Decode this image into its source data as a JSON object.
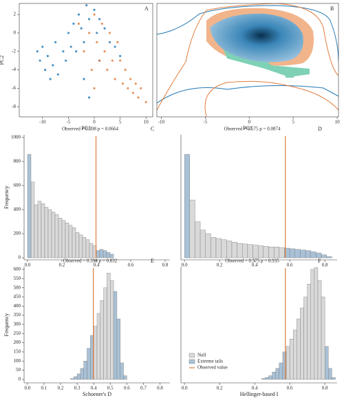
{
  "chart_data": [
    {
      "type": "scatter",
      "label": "A",
      "xlabel": "PC1",
      "ylabel": "PC2",
      "xlim": [
        -14.5,
        11.3
      ],
      "ylim": [
        -9.1,
        3.2
      ],
      "xticks": [
        -10,
        -5,
        0,
        5,
        10
      ],
      "yticks": [
        2,
        0,
        -2,
        -4,
        -6,
        -8
      ],
      "series": [
        {
          "color": "#1f77b4",
          "x": [
            -11,
            -10.5,
            -10,
            -9.5,
            -9,
            -8.5,
            -8,
            -7.5,
            -7,
            -6,
            -5.5,
            -5,
            -4.5,
            -4,
            -3.5,
            -3,
            -2.5,
            -2,
            -1.5,
            -1,
            0,
            0.5,
            1,
            2,
            3,
            4,
            5,
            -2,
            -1,
            1
          ],
          "y": [
            -2,
            -3,
            -1.5,
            -4,
            -2.5,
            -5,
            -3.5,
            -1,
            -4.5,
            -2,
            -3,
            0,
            -1.5,
            1,
            -2,
            2,
            0.5,
            -1,
            3,
            1.5,
            2.5,
            0,
            1.5,
            0.5,
            -1,
            -1.5,
            -2.5,
            -5,
            -7,
            -3
          ]
        },
        {
          "color": "#e07b39",
          "x": [
            -3,
            -2,
            -1,
            0,
            0.5,
            1,
            1.5,
            2,
            2.5,
            3,
            3.5,
            4,
            4.5,
            5,
            5.5,
            6,
            6.5,
            7,
            7.5,
            8,
            8.5,
            9,
            10,
            -0.5,
            0
          ],
          "y": [
            1,
            -2,
            0,
            2,
            -1,
            -3,
            1,
            -2,
            -4,
            0,
            -3,
            -5,
            -1,
            -3,
            -5.5,
            -4,
            -6,
            -5,
            -6.5,
            -5.5,
            -7,
            -6,
            -7.5,
            -4,
            -6
          ]
        }
      ]
    },
    {
      "type": "density",
      "label": "B",
      "xlabel": "PC1",
      "xlim": [
        -10.5,
        10.15
      ],
      "xticks": [
        -10,
        -5,
        0,
        5,
        10
      ]
    },
    {
      "type": "histogram",
      "label": "C",
      "annotation": "Observed = 0.398 p = 0.0664",
      "ylabel": "Frequency",
      "xlim": [
        -0.02,
        0.828
      ],
      "ylim": [
        -17,
        1023
      ],
      "xticks": [
        {
          "value": 0,
          "label": "0.0"
        },
        0.2,
        0.4,
        0.6,
        0.8
      ],
      "yticks": [
        0,
        200,
        400,
        600,
        800,
        1000
      ],
      "observed": {
        "value": 0.398,
        "color": "#e07b39"
      },
      "bins": [
        0,
        0.02,
        0.04,
        0.06,
        0.08,
        0.1,
        0.12,
        0.14,
        0.16,
        0.18,
        0.2,
        0.22,
        0.24,
        0.26,
        0.28,
        0.3,
        0.32,
        0.34,
        0.36,
        0.38,
        0.4,
        0.42,
        0.44,
        0.46,
        0.48,
        0.5
      ],
      "series": [
        {
          "color": "#d9d9d9",
          "values": [
            null,
            630,
            440,
            470,
            450,
            420,
            400,
            380,
            360,
            330,
            310,
            290,
            270,
            250,
            210,
            190,
            170,
            150,
            120,
            100,
            null,
            null,
            null,
            null,
            null
          ]
        },
        {
          "color": "#a9c1d6",
          "values": [
            860,
            null,
            null,
            null,
            null,
            null,
            null,
            null,
            null,
            null,
            null,
            null,
            null,
            null,
            null,
            null,
            null,
            null,
            null,
            null,
            60,
            70,
            60,
            45,
            30
          ]
        }
      ]
    },
    {
      "type": "histogram",
      "label": "D",
      "annotation": "Observed = 0.575 p = 0.0874",
      "xlim": [
        -0.02,
        0.87
      ],
      "ylim": [
        -17,
        1023
      ],
      "xticks": [
        {
          "value": 0,
          "label": "0.0"
        },
        0.2,
        0.4,
        0.6,
        0.8
      ],
      "observed": {
        "value": 0.575,
        "color": "#e07b39"
      },
      "bins": [
        0,
        0.03,
        0.06,
        0.09,
        0.12,
        0.15,
        0.18,
        0.21,
        0.24,
        0.27,
        0.3,
        0.33,
        0.36,
        0.39,
        0.42,
        0.45,
        0.48,
        0.51,
        0.54,
        0.57,
        0.6,
        0.63,
        0.66,
        0.69,
        0.72,
        0.75,
        0.78,
        0.81,
        0.84
      ],
      "series": [
        {
          "color": "#d9d9d9",
          "values": [
            null,
            480,
            300,
            230,
            200,
            170,
            160,
            150,
            140,
            130,
            120,
            115,
            110,
            105,
            100,
            95,
            90,
            90,
            85,
            null,
            null,
            null,
            null,
            null,
            null,
            null,
            null,
            null
          ]
        },
        {
          "color": "#a9c1d6",
          "values": [
            860,
            null,
            null,
            null,
            null,
            null,
            null,
            null,
            null,
            null,
            null,
            null,
            null,
            null,
            null,
            null,
            null,
            null,
            null,
            80,
            75,
            70,
            65,
            60,
            50,
            40,
            25,
            10
          ]
        }
      ]
    },
    {
      "type": "histogram",
      "label": "E",
      "annotation": "Observed = 0.398 p = 0.832",
      "ylabel": "Frequency",
      "xlabel": "Schoener's D",
      "xlim": [
        -0.02,
        0.86
      ],
      "ylim": [
        -19,
        615
      ],
      "xticks": [
        {
          "value": 0,
          "label": "0.0"
        },
        0.1,
        0.2,
        0.3,
        0.4,
        0.5,
        0.6,
        0.7,
        0.8
      ],
      "yticks": [
        0,
        50,
        100,
        150,
        200,
        250,
        300,
        350,
        400,
        450,
        500,
        550,
        600
      ],
      "observed": {
        "value": 0.398,
        "color": "#e07b39"
      },
      "bins": [
        0.26,
        0.28,
        0.3,
        0.32,
        0.34,
        0.36,
        0.38,
        0.4,
        0.42,
        0.44,
        0.46,
        0.48,
        0.5,
        0.52,
        0.54,
        0.56,
        0.58,
        0.6
      ],
      "series": [
        {
          "color": "#d9d9d9",
          "values": [
            null,
            null,
            null,
            null,
            null,
            null,
            null,
            290,
            360,
            430,
            500,
            580,
            540,
            null,
            null,
            null,
            null
          ]
        },
        {
          "color": "#a9c1d6",
          "values": [
            5,
            15,
            30,
            60,
            100,
            170,
            240,
            null,
            null,
            null,
            null,
            null,
            null,
            480,
            330,
            90,
            20
          ]
        }
      ]
    },
    {
      "type": "histogram",
      "label": "F",
      "annotation": "Observed = 0.575 p = 0.935",
      "xlabel": "Hellinger-based I",
      "xlim": [
        -0.02,
        0.87
      ],
      "ylim": [
        -19,
        615
      ],
      "xticks": [
        {
          "value": 0,
          "label": "0.0"
        },
        0.2,
        0.4,
        0.6,
        0.8
      ],
      "observed": {
        "value": 0.575,
        "color": "#e07b39",
        "name": "Observed value"
      },
      "bins": [
        0.44,
        0.46,
        0.48,
        0.5,
        0.52,
        0.54,
        0.56,
        0.58,
        0.6,
        0.62,
        0.64,
        0.66,
        0.68,
        0.7,
        0.72,
        0.74,
        0.76,
        0.78,
        0.8,
        0.82,
        0.84,
        0.86
      ],
      "series": [
        {
          "name": "Null",
          "color": "#d9d9d9",
          "values": [
            null,
            null,
            null,
            null,
            null,
            null,
            null,
            180,
            220,
            270,
            330,
            390,
            450,
            520,
            600,
            610,
            540,
            450,
            null,
            null,
            null
          ]
        },
        {
          "name": "Extreme tails",
          "color": "#a9c1d6",
          "values": [
            5,
            10,
            20,
            40,
            60,
            90,
            150,
            null,
            null,
            null,
            null,
            null,
            null,
            null,
            null,
            null,
            null,
            null,
            180,
            60,
            10
          ]
        }
      ]
    }
  ]
}
